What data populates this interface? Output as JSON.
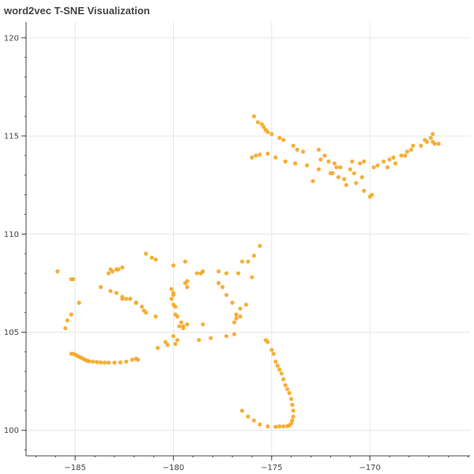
{
  "chart_data": {
    "type": "scatter",
    "title": "word2vec T-SNE Visualization",
    "xlabel": "",
    "ylabel": "",
    "xlim": [
      -187.5,
      -164.9
    ],
    "ylim": [
      98.7,
      120.8
    ],
    "xticks": [
      -185,
      -180,
      -175,
      -170
    ],
    "yticks": [
      100,
      105,
      110,
      115,
      120
    ],
    "x_tick_labels": [
      "−185",
      "−180",
      "−175",
      "−170"
    ],
    "y_tick_labels": [
      "100",
      "105",
      "110",
      "115",
      "120"
    ],
    "grid": true,
    "marker_color": "#f5a623",
    "points": [
      [
        -185.9,
        108.1
      ],
      [
        -185.2,
        107.7
      ],
      [
        -185.1,
        107.7
      ],
      [
        -184.8,
        106.5
      ],
      [
        -185.4,
        105.6
      ],
      [
        -185.5,
        105.2
      ],
      [
        -185.2,
        105.9
      ],
      [
        -185.2,
        103.9
      ],
      [
        -185.1,
        103.9
      ],
      [
        -185.0,
        103.85
      ],
      [
        -184.9,
        103.8
      ],
      [
        -184.8,
        103.75
      ],
      [
        -184.7,
        103.7
      ],
      [
        -184.6,
        103.65
      ],
      [
        -184.5,
        103.6
      ],
      [
        -184.4,
        103.55
      ],
      [
        -184.3,
        103.52
      ],
      [
        -184.1,
        103.5
      ],
      [
        -183.9,
        103.48
      ],
      [
        -183.7,
        103.46
      ],
      [
        -183.5,
        103.45
      ],
      [
        -183.3,
        103.45
      ],
      [
        -183.0,
        103.45
      ],
      [
        -182.7,
        103.46
      ],
      [
        -182.4,
        103.5
      ],
      [
        -182.1,
        103.6
      ],
      [
        -181.9,
        103.65
      ],
      [
        -181.8,
        103.6
      ],
      [
        -183.3,
        108.0
      ],
      [
        -183.1,
        108.1
      ],
      [
        -182.9,
        108.2
      ],
      [
        -183.2,
        108.2
      ],
      [
        -182.8,
        108.2
      ],
      [
        -182.6,
        108.3
      ],
      [
        -183.7,
        107.3
      ],
      [
        -183.2,
        107.1
      ],
      [
        -182.9,
        107.0
      ],
      [
        -182.6,
        106.8
      ],
      [
        -182.4,
        106.7
      ],
      [
        -182.2,
        106.7
      ],
      [
        -181.9,
        106.5
      ],
      [
        -181.6,
        106.3
      ],
      [
        -181.5,
        106.1
      ],
      [
        -181.4,
        106.0
      ],
      [
        -180.9,
        105.8
      ],
      [
        -182.6,
        106.7
      ],
      [
        -181.9,
        106.5
      ],
      [
        -181.4,
        109.0
      ],
      [
        -181.1,
        108.8
      ],
      [
        -180.9,
        108.7
      ],
      [
        -180.0,
        108.4
      ],
      [
        -179.4,
        108.6
      ],
      [
        -180.1,
        107.2
      ],
      [
        -180.0,
        107.0
      ],
      [
        -180.0,
        106.9
      ],
      [
        -180.1,
        106.7
      ],
      [
        -180.0,
        106.4
      ],
      [
        -179.9,
        106.3
      ],
      [
        -179.9,
        105.9
      ],
      [
        -179.8,
        105.8
      ],
      [
        -179.6,
        105.5
      ],
      [
        -179.7,
        105.3
      ],
      [
        -179.5,
        105.3
      ],
      [
        -179.3,
        105.4
      ],
      [
        -179.5,
        105.2
      ],
      [
        -180.0,
        104.8
      ],
      [
        -179.8,
        104.6
      ],
      [
        -180.4,
        104.5
      ],
      [
        -180.3,
        104.35
      ],
      [
        -179.9,
        104.4
      ],
      [
        -180.8,
        104.2
      ],
      [
        -179.3,
        107.3
      ],
      [
        -179.4,
        107.5
      ],
      [
        -179.3,
        107.6
      ],
      [
        -178.8,
        108.0
      ],
      [
        -178.6,
        108.0
      ],
      [
        -178.5,
        108.1
      ],
      [
        -177.7,
        108.1
      ],
      [
        -177.3,
        108.0
      ],
      [
        -176.7,
        108.0
      ],
      [
        -176.5,
        108.6
      ],
      [
        -176.2,
        108.6
      ],
      [
        -176.0,
        107.8
      ],
      [
        -175.9,
        108.9
      ],
      [
        -175.6,
        109.4
      ],
      [
        -177.7,
        107.5
      ],
      [
        -177.5,
        107.3
      ],
      [
        -177.3,
        106.9
      ],
      [
        -177.0,
        106.5
      ],
      [
        -176.6,
        106.2
      ],
      [
        -176.3,
        106.4
      ],
      [
        -176.8,
        105.9
      ],
      [
        -176.6,
        105.8
      ],
      [
        -176.8,
        105.7
      ],
      [
        -176.9,
        105.5
      ],
      [
        -178.5,
        105.4
      ],
      [
        -177.3,
        104.8
      ],
      [
        -178.1,
        104.7
      ],
      [
        -178.7,
        104.6
      ],
      [
        -176.9,
        104.9
      ],
      [
        -175.3,
        104.6
      ],
      [
        -175.2,
        104.5
      ],
      [
        -175.0,
        104.1
      ],
      [
        -174.9,
        103.9
      ],
      [
        -174.8,
        103.5
      ],
      [
        -174.7,
        103.3
      ],
      [
        -174.6,
        103.1
      ],
      [
        -174.5,
        102.9
      ],
      [
        -174.4,
        102.6
      ],
      [
        -174.3,
        102.3
      ],
      [
        -174.2,
        102.1
      ],
      [
        -174.1,
        101.9
      ],
      [
        -174.0,
        101.6
      ],
      [
        -173.95,
        101.3
      ],
      [
        -173.9,
        101.0
      ],
      [
        -173.9,
        100.7
      ],
      [
        -173.95,
        100.5
      ],
      [
        -174.0,
        100.35
      ],
      [
        -174.1,
        100.25
      ],
      [
        -174.2,
        100.22
      ],
      [
        -174.4,
        100.2
      ],
      [
        -174.6,
        100.2
      ],
      [
        -174.8,
        100.18
      ],
      [
        -175.2,
        100.2
      ],
      [
        -175.6,
        100.3
      ],
      [
        -175.9,
        100.5
      ],
      [
        -176.2,
        100.7
      ],
      [
        -176.5,
        101.0
      ],
      [
        -175.9,
        116.0
      ],
      [
        -175.7,
        115.7
      ],
      [
        -175.5,
        115.6
      ],
      [
        -175.4,
        115.45
      ],
      [
        -175.3,
        115.3
      ],
      [
        -175.2,
        115.2
      ],
      [
        -175.0,
        115.1
      ],
      [
        -174.6,
        114.9
      ],
      [
        -174.4,
        114.8
      ],
      [
        -173.9,
        114.5
      ],
      [
        -173.7,
        114.3
      ],
      [
        -173.4,
        114.2
      ],
      [
        -172.6,
        114.3
      ],
      [
        -172.5,
        113.8
      ],
      [
        -172.3,
        114.0
      ],
      [
        -171.8,
        113.6
      ],
      [
        -171.5,
        113.4
      ],
      [
        -170.9,
        113.7
      ],
      [
        -170.5,
        113.6
      ],
      [
        -169.8,
        113.4
      ],
      [
        -169.1,
        113.4
      ],
      [
        -168.7,
        113.6
      ],
      [
        -168.2,
        114.0
      ],
      [
        -167.9,
        114.3
      ],
      [
        -167.4,
        114.5
      ],
      [
        -167.1,
        114.7
      ],
      [
        -166.8,
        115.1
      ],
      [
        -166.5,
        114.6
      ],
      [
        -176.0,
        113.9
      ],
      [
        -175.8,
        114.0
      ],
      [
        -175.6,
        114.05
      ],
      [
        -175.2,
        114.1
      ],
      [
        -174.8,
        113.9
      ],
      [
        -174.3,
        113.7
      ],
      [
        -173.8,
        113.6
      ],
      [
        -173.2,
        113.5
      ],
      [
        -172.6,
        113.3
      ],
      [
        -172.0,
        113.1
      ],
      [
        -171.6,
        112.9
      ],
      [
        -171.3,
        112.8
      ],
      [
        -170.7,
        112.6
      ],
      [
        -170.3,
        112.2
      ],
      [
        -170.0,
        111.9
      ],
      [
        -169.9,
        112.0
      ],
      [
        -171.2,
        112.5
      ],
      [
        -172.9,
        112.7
      ],
      [
        -171.7,
        113.4
      ],
      [
        -171.0,
        113.3
      ],
      [
        -170.8,
        113.1
      ],
      [
        -170.4,
        112.9
      ],
      [
        -169.6,
        113.5
      ],
      [
        -169.3,
        113.7
      ],
      [
        -169.0,
        113.8
      ],
      [
        -168.4,
        114.0
      ],
      [
        -168.1,
        114.2
      ],
      [
        -167.8,
        114.5
      ],
      [
        -167.2,
        114.8
      ],
      [
        -166.9,
        114.9
      ],
      [
        -166.8,
        114.7
      ],
      [
        -166.7,
        114.6
      ],
      [
        -168.8,
        113.9
      ],
      [
        -170.3,
        113.7
      ],
      [
        -171.9,
        113.1
      ],
      [
        -172.1,
        113.7
      ]
    ]
  }
}
